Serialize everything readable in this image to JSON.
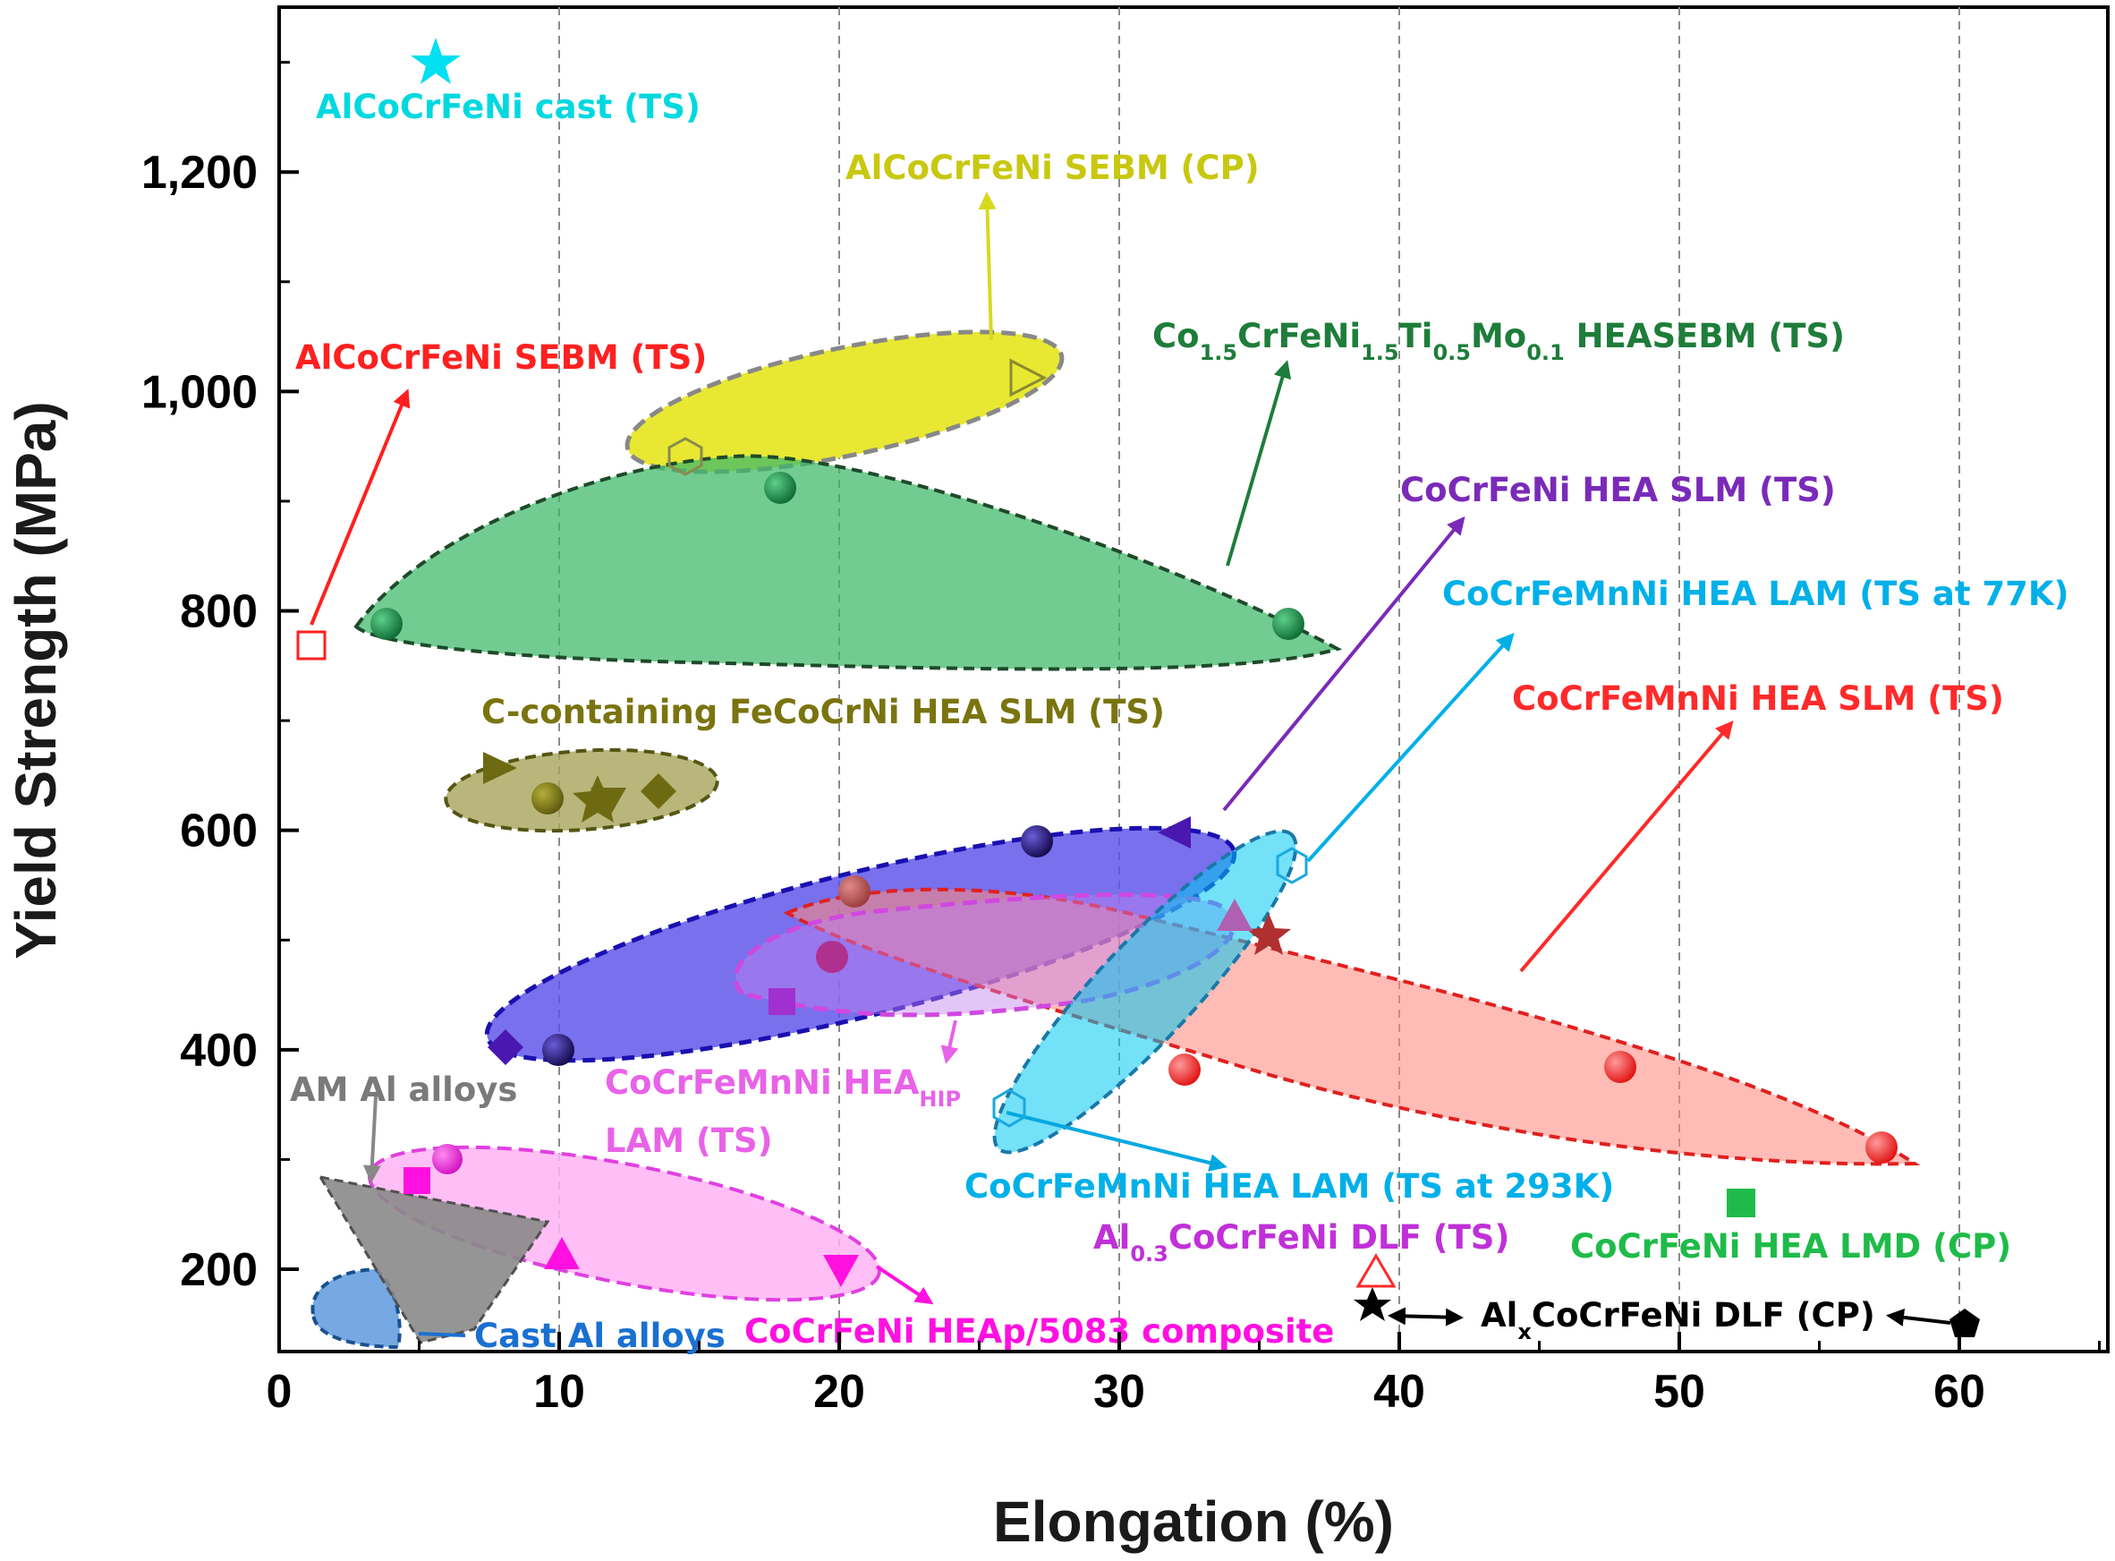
{
  "chart_data": {
    "type": "scatter",
    "xlabel": "Elongation (%)",
    "ylabel": "Yield Strength (MPa)",
    "xlim": [
      0,
      65
    ],
    "ylim": [
      120,
      1340
    ],
    "xticks": [
      0,
      10,
      20,
      30,
      40,
      50,
      60
    ],
    "xtick_labels": [
      "0",
      "10",
      "20",
      "30",
      "40",
      "50",
      "60"
    ],
    "yticks": [
      200,
      400,
      600,
      800,
      1000,
      1200
    ],
    "ytick_labels": [
      "200",
      "400",
      "600",
      "800",
      "1,000",
      "1,200"
    ],
    "vertical_dashed_gridlines": true,
    "series": [
      {
        "name": "AlCoCrFeNi cast (TS)",
        "color": "#00e0e8",
        "marker": "star",
        "points": [
          [
            5.5,
            1305
          ]
        ]
      },
      {
        "name": "AlCoCrFeNi SEBM (CP)",
        "color": "#c8c800",
        "marker": "triangle-right-open",
        "points": [
          [
            14.5,
            945
          ],
          [
            26.5,
            1015
          ]
        ]
      },
      {
        "name": "AlCoCrFeNi SEBM (TS)",
        "color": "#ff2020",
        "marker": "square-open",
        "points": [
          [
            1.2,
            768
          ]
        ]
      },
      {
        "name": "Co1.5CrFeNi1.5Ti0.5Mo0.1 HEASEBM (TS)",
        "color": "#1e7d3a",
        "marker": "sphere",
        "points": [
          [
            3.9,
            788
          ],
          [
            17.9,
            915
          ],
          [
            36,
            788
          ]
        ]
      },
      {
        "name": "C-containing FeCoCrNi HEA SLM (TS)",
        "color": "#6e6a12",
        "marker": "mixed",
        "points": [
          [
            7.9,
            658
          ],
          [
            9.6,
            630
          ],
          [
            11.3,
            638
          ],
          [
            12.0,
            634
          ],
          [
            13.6,
            638
          ]
        ]
      },
      {
        "name": "CoCrFeNi HEA SLM (TS)",
        "color": "#5a2bd0",
        "marker": "sphere",
        "points": [
          [
            8,
            400
          ],
          [
            10,
            400
          ],
          [
            27,
            590
          ],
          [
            32,
            600
          ]
        ]
      },
      {
        "name": "CoCrFeMnNi HEA LAM (TS at 77K)",
        "color": "#00b0e8",
        "marker": "hexagon-open",
        "points": [
          [
            36,
            565
          ]
        ]
      },
      {
        "name": "CoCrFeMnNi HEA SLM (TS)",
        "color": "#ff2a2a",
        "marker": "sphere",
        "points": [
          [
            20.5,
            545
          ],
          [
            32.2,
            383
          ],
          [
            47.8,
            385
          ],
          [
            57,
            310
          ],
          [
            35.3,
            510
          ]
        ]
      },
      {
        "name": "CoCrFeMnNi HEAHIP LAM (TS)",
        "color": "#e040e0",
        "marker": "mixed",
        "points": [
          [
            17.8,
            445
          ],
          [
            19.6,
            485
          ],
          [
            34,
            522
          ]
        ]
      },
      {
        "name": "CoCrFeMnNi HEA LAM (TS at 293K)",
        "color": "#00b0e8",
        "marker": "hexagon-open",
        "points": [
          [
            26,
            350
          ]
        ]
      },
      {
        "name": "Al0.3CoCrFeNi DLF (TS)",
        "color": "#ff2a2a",
        "marker": "triangle-up-open",
        "points": [
          [
            39,
            198
          ]
        ]
      },
      {
        "name": "CoCrFeNi HEA LMD (CP)",
        "color": "#1fbb4a",
        "marker": "square",
        "points": [
          [
            52,
            260
          ]
        ]
      },
      {
        "name": "AlxCoCrFeNi DLF (CP)",
        "color": "#000000",
        "marker": "mixed",
        "points": [
          [
            39,
            170
          ],
          [
            60,
            155
          ]
        ]
      },
      {
        "name": "CoCrFeNi HEAp/5083 composite",
        "color": "#ff10e0",
        "marker": "mixed",
        "points": [
          [
            5,
            283
          ],
          [
            6,
            300
          ],
          [
            10,
            212
          ],
          [
            20,
            200
          ]
        ]
      },
      {
        "name": "AM Al alloys",
        "color": "#808080",
        "marker": "region",
        "points": []
      },
      {
        "name": "Cast Al alloys",
        "color": "#1a70d0",
        "marker": "region",
        "points": []
      }
    ],
    "annotations": [
      {
        "id": "cast",
        "text": "AlCoCrFeNi cast (TS)",
        "color": "#00d8e0"
      },
      {
        "id": "sebmcp",
        "text": "AlCoCrFeNi SEBM (CP)",
        "color": "#c8c810"
      },
      {
        "id": "sebmts",
        "text": "AlCoCrFeNi SEBM (TS)",
        "color": "#ff2020"
      },
      {
        "id": "co15",
        "text": "Co1.5CrFeNi1.5Ti0.5Mo0.1 HEASEBM (TS)",
        "color": "#1e7d3a"
      },
      {
        "id": "ccont",
        "text": "C-containing FeCoCrNi HEA SLM (TS)",
        "color": "#7a7410"
      },
      {
        "id": "cocrfeni",
        "text": "CoCrFeNi HEA SLM (TS)",
        "color": "#7a2ab8"
      },
      {
        "id": "lam77",
        "text": "CoCrFeMnNi HEA LAM (TS at 77K)",
        "color": "#00b0e8"
      },
      {
        "id": "slm",
        "text": "CoCrFeMnNi HEA SLM (TS)",
        "color": "#ff2a2a"
      },
      {
        "id": "hip1",
        "text": "CoCrFeMnNi HEAHIP",
        "color": "#e862e8"
      },
      {
        "id": "hip2",
        "text": "LAM (TS)",
        "color": "#e862e8"
      },
      {
        "id": "amal",
        "text": "AM Al alloys",
        "color": "#7a7a7a"
      },
      {
        "id": "lam293",
        "text": "CoCrFeMnNi HEA LAM (TS at 293K)",
        "color": "#00b0e8"
      },
      {
        "id": "al03",
        "text": "Al0.3CoCrFeNi DLF (TS)",
        "color": "#c030d8"
      },
      {
        "id": "lmd",
        "text": "CoCrFeNi HEA LMD (CP)",
        "color": "#1fbb4a"
      },
      {
        "id": "castal",
        "text": "Cast Al alloys",
        "color": "#1a70d0"
      },
      {
        "id": "comp",
        "text": "CoCrFeNi HEAp/5083 composite",
        "color": "#ff10e0"
      },
      {
        "id": "alx",
        "text": "AlxCoCrFeNi DLF (CP)",
        "color": "#000000"
      }
    ]
  }
}
